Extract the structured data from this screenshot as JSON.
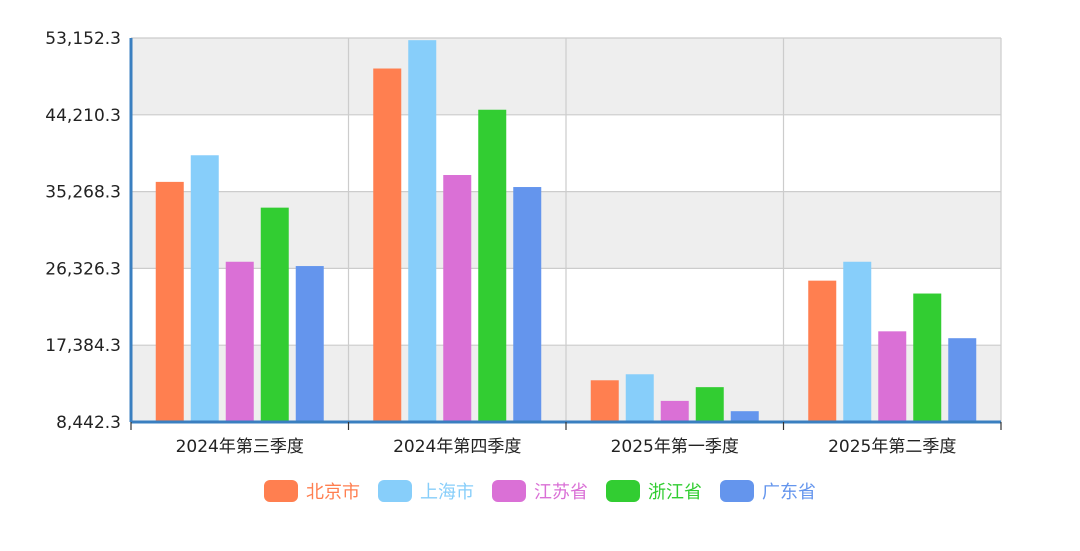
{
  "chart_data": {
    "type": "bar",
    "title": "",
    "xlabel": "",
    "ylabel": "",
    "categories": [
      "2024年第三季度",
      "2024年第四季度",
      "2025年第一季度",
      "2025年第二季度"
    ],
    "y_ticks": [
      "53,152.3",
      "44,210.3",
      "35,268.3",
      "26,326.3",
      "17,384.3",
      "8,442.3"
    ],
    "ylim": [
      8442.3,
      53152.3
    ],
    "grid": true,
    "legend_position": "bottom",
    "series": [
      {
        "name": "北京市",
        "color": "#ff7f50",
        "values": [
          36400,
          49600,
          13300,
          24900
        ]
      },
      {
        "name": "上海市",
        "color": "#87cefa",
        "values": [
          39500,
          52900,
          14000,
          27100
        ]
      },
      {
        "name": "江苏省",
        "color": "#da70d6",
        "values": [
          27100,
          37200,
          10900,
          19000
        ]
      },
      {
        "name": "浙江省",
        "color": "#32cd32",
        "values": [
          33400,
          44800,
          12500,
          23400
        ]
      },
      {
        "name": "广东省",
        "color": "#6495ed",
        "values": [
          26600,
          35800,
          9700,
          18200
        ]
      }
    ]
  }
}
